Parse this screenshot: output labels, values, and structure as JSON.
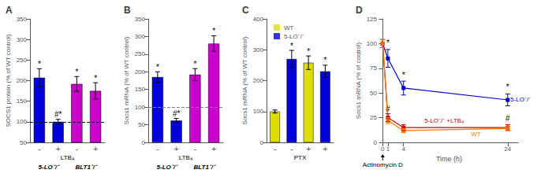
{
  "chart_data": [
    {
      "type": "bar",
      "title": "A",
      "ylabel": "SOCS1 protein (% of WT control)",
      "categories": [
        "-",
        "+",
        "-",
        "+"
      ],
      "row_label": "LTB₄",
      "group_labels": [
        "5-LO⁻/⁻",
        "BLT1⁻/⁻"
      ],
      "values": [
        207,
        100,
        192,
        175
      ],
      "errors": [
        22,
        6,
        18,
        20
      ],
      "colors": [
        "#0000dd",
        "#0000dd",
        "#cc00cc",
        "#cc00cc"
      ],
      "bar_annotations": [
        "*",
        "#*",
        "*",
        "*"
      ],
      "reference_line": {
        "y": 100,
        "color": "#000000",
        "line_style": "dashed"
      },
      "ylim": [
        50,
        350
      ],
      "yticks": [
        50,
        100,
        150,
        200,
        250,
        300,
        350
      ],
      "grid": false
    },
    {
      "type": "bar",
      "title": "B",
      "ylabel": "Socs1 mRNA (% of WT control)",
      "categories": [
        "-",
        "+",
        "-",
        "+"
      ],
      "row_label": "LTB₄",
      "group_labels": [
        "5-LO⁻/⁻",
        "BLT1⁻/⁻"
      ],
      "values": [
        185,
        62,
        192,
        280
      ],
      "errors": [
        15,
        6,
        17,
        22
      ],
      "colors": [
        "#0000dd",
        "#0000dd",
        "#cc00cc",
        "#cc00cc"
      ],
      "bar_annotations": [
        "*",
        "#*",
        "*",
        "*"
      ],
      "reference_line": {
        "y": 100,
        "color": "#808080",
        "line_style": "dashed"
      },
      "ylim": [
        0,
        350
      ],
      "yticks": [
        0,
        50,
        100,
        150,
        200,
        250,
        300,
        350
      ],
      "grid": false
    },
    {
      "type": "bar",
      "title": "C",
      "ylabel": "Socs1 mRNA (% of WT control)",
      "categories": [
        "-",
        "-",
        "+",
        "+"
      ],
      "row_label": "PTX",
      "values": [
        100,
        270,
        258,
        230
      ],
      "errors": [
        5,
        28,
        22,
        20
      ],
      "colors": [
        "#dddd00",
        "#0000dd",
        "#dddd00",
        "#0000dd"
      ],
      "bar_annotations": [
        null,
        "*",
        "*",
        "*"
      ],
      "legend": "upper left",
      "legend_entries": [
        {
          "name": "WT",
          "color": "#dddd00"
        },
        {
          "name": "5-LO⁻/⁻",
          "color": "#0000dd"
        }
      ],
      "ylim": [
        0,
        400
      ],
      "yticks": [
        0,
        100,
        200,
        300,
        400
      ],
      "grid": false
    },
    {
      "type": "line",
      "title": "D",
      "xlabel": "Time (h)",
      "ylabel": "Socs1 mRNA (% of control)",
      "x": [
        0,
        1,
        4,
        24
      ],
      "series": [
        {
          "name": "5-LO⁻/⁻",
          "color": "#0000cc",
          "marker": "square",
          "values": [
            100,
            85,
            55,
            43
          ],
          "errors": [
            4,
            9,
            7,
            6
          ]
        },
        {
          "name": "5-LO⁻/⁻ +LTB₄",
          "color": "#cc0000",
          "marker": "square",
          "values": [
            100,
            25,
            15,
            15
          ],
          "errors": [
            4,
            4,
            3,
            3
          ]
        },
        {
          "name": "WT",
          "color": "#ff7700",
          "marker": "square",
          "values": [
            100,
            22,
            12,
            14
          ],
          "errors": [
            4,
            3,
            2,
            2
          ]
        }
      ],
      "annotations": [
        {
          "text": "Actinomycin D",
          "x": 0,
          "arrow": true
        },
        {
          "text": "5-LO⁻/⁻",
          "x": 24.5,
          "y": 43
        },
        {
          "text": "5-LO⁻/⁻ +LTB₄",
          "x": 8,
          "y": 22
        },
        {
          "text": "WT",
          "x": 17,
          "y": 8
        },
        {
          "text": "*",
          "x": 1,
          "y": 97
        },
        {
          "text": "*",
          "x": 4,
          "y": 64
        },
        {
          "text": "*",
          "x": 24,
          "y": 52
        },
        {
          "text": "#",
          "x": 1,
          "y": 30
        },
        {
          "text": "#",
          "x": 24,
          "y": 20
        }
      ],
      "xlim": [
        -0.5,
        26
      ],
      "xticks": [
        0,
        1,
        4,
        24
      ],
      "ylim": [
        0,
        125
      ],
      "yticks": [
        0,
        25,
        50,
        75,
        100,
        125
      ],
      "grid": false
    }
  ]
}
